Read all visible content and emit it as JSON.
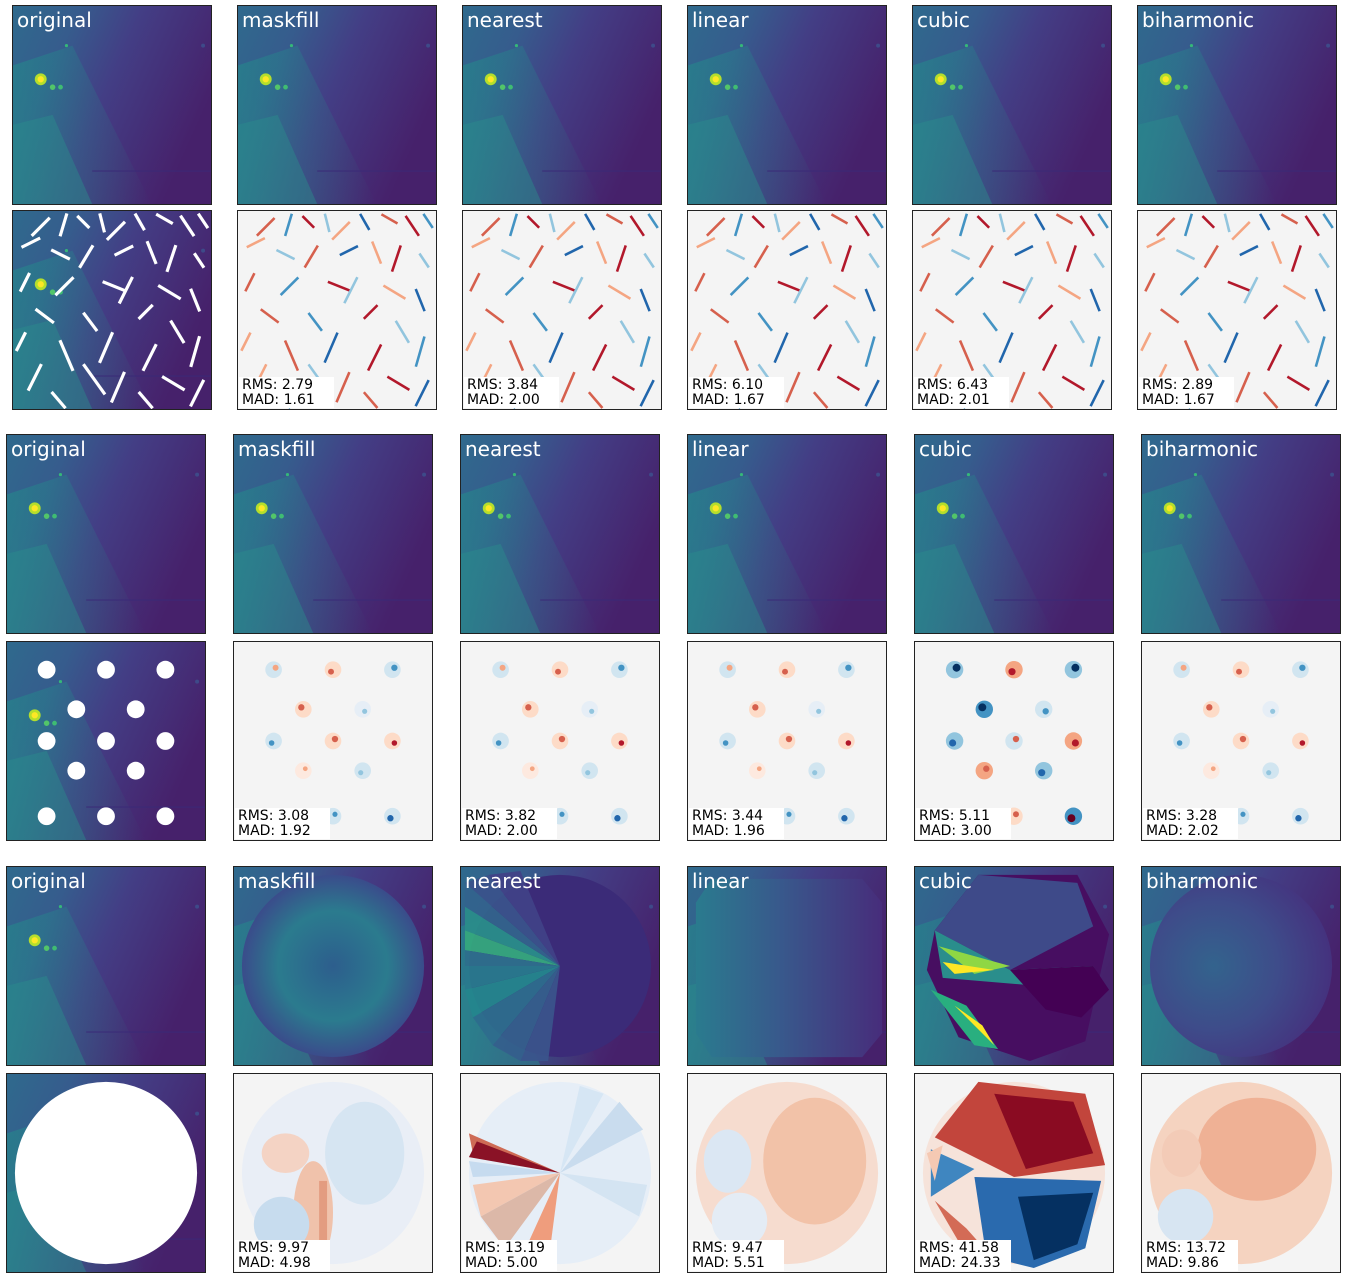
{
  "colors": {
    "viridis_dark": "#440154",
    "viridis_mid": "#31688e",
    "viridis_teal": "#21918c",
    "viridis_green": "#35b779",
    "viridis_yellow": "#fde725",
    "diff_background": "#f4f4f4",
    "diff_positive": "#b2182b",
    "diff_negative": "#2166ac",
    "mask": "#ffffff"
  },
  "groups": [
    {
      "mask_type": "streaks",
      "titles": [
        "original",
        "maskfill",
        "nearest",
        "linear",
        "cubic",
        "biharmonic"
      ],
      "stats": [
        {
          "rms": "RMS: 2.79",
          "mad": "MAD: 1.61"
        },
        {
          "rms": "RMS: 3.84",
          "mad": "MAD: 2.00"
        },
        {
          "rms": "RMS: 6.10",
          "mad": "MAD: 1.67"
        },
        {
          "rms": "RMS: 6.43",
          "mad": "MAD: 2.01"
        },
        {
          "rms": "RMS: 2.89",
          "mad": "MAD: 1.67"
        }
      ]
    },
    {
      "mask_type": "holes",
      "titles": [
        "original",
        "maskfill",
        "nearest",
        "linear",
        "cubic",
        "biharmonic"
      ],
      "stats": [
        {
          "rms": "RMS: 3.08",
          "mad": "MAD: 1.92"
        },
        {
          "rms": "RMS: 3.82",
          "mad": "MAD: 2.00"
        },
        {
          "rms": "RMS: 3.44",
          "mad": "MAD: 1.96"
        },
        {
          "rms": "RMS: 5.11",
          "mad": "MAD: 3.00"
        },
        {
          "rms": "RMS: 3.28",
          "mad": "MAD: 2.02"
        }
      ]
    },
    {
      "mask_type": "disk",
      "titles": [
        "original",
        "maskfill",
        "nearest",
        "linear",
        "cubic",
        "biharmonic"
      ],
      "stats": [
        {
          "rms": "RMS: 9.97",
          "mad": "MAD: 4.98"
        },
        {
          "rms": "RMS: 13.19",
          "mad": "MAD: 5.00"
        },
        {
          "rms": "RMS: 9.47",
          "mad": "MAD: 5.51"
        },
        {
          "rms": "RMS: 41.58",
          "mad": "MAD: 24.33"
        },
        {
          "rms": "RMS: 13.72",
          "mad": "MAD: 9.86"
        }
      ]
    }
  ]
}
